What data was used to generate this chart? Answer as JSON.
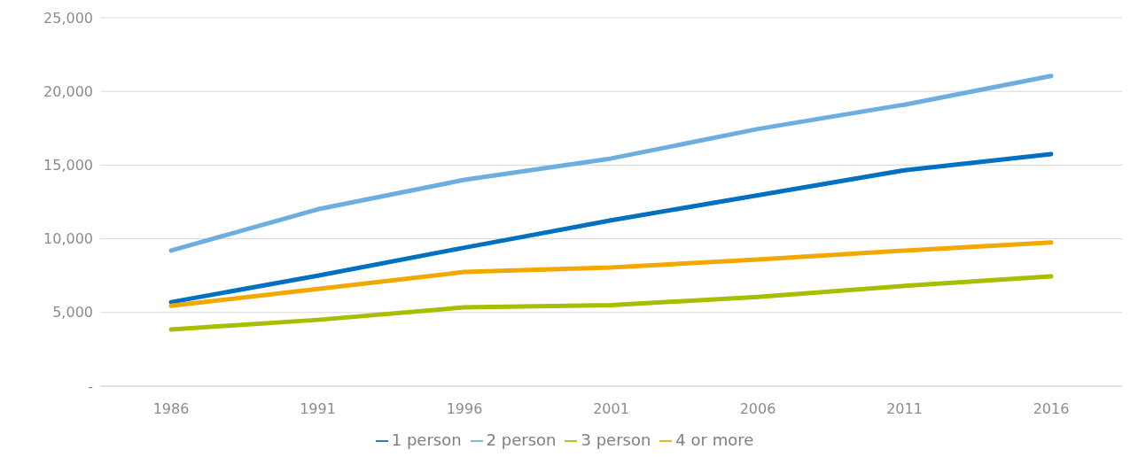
{
  "chart_data": {
    "type": "line",
    "categories": [
      "1986",
      "1991",
      "1996",
      "2001",
      "2006",
      "2011",
      "2016"
    ],
    "series": [
      {
        "name": "1 person",
        "color": "#0070c0",
        "values": [
          5700,
          7500,
          9400,
          11250,
          12950,
          14650,
          15750
        ]
      },
      {
        "name": "2 person",
        "color": "#6caee0",
        "values": [
          9200,
          12000,
          14000,
          15450,
          17450,
          19100,
          21050
        ]
      },
      {
        "name": "3 person",
        "color": "#a8be00",
        "values": [
          3850,
          4500,
          5350,
          5500,
          6050,
          6800,
          7450
        ]
      },
      {
        "name": "4 or more",
        "color": "#f3a800",
        "values": [
          5450,
          6600,
          7750,
          8050,
          8600,
          9200,
          9750
        ]
      }
    ],
    "ylim": [
      0,
      25000
    ],
    "yticks": [
      {
        "value": 0,
        "label": "-"
      },
      {
        "value": 5000,
        "label": "5,000"
      },
      {
        "value": 10000,
        "label": "10,000"
      },
      {
        "value": 15000,
        "label": "15,000"
      },
      {
        "value": 20000,
        "label": "20,000"
      },
      {
        "value": 25000,
        "label": "25,000"
      }
    ],
    "grid": "y",
    "legend": "bottom",
    "marker": "none",
    "line_style": "solid"
  }
}
